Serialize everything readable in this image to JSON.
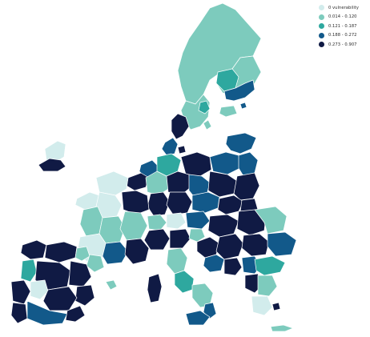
{
  "colors": {
    "background": "#ffffff",
    "border": "#ffffff",
    "classes": [
      "#d2ecec",
      "#7dcbbd",
      "#2ea89f",
      "#12598a",
      "#101a44"
    ]
  },
  "legend": {
    "items": [
      {
        "label": "0 vulnerability",
        "color": "#d2ecec"
      },
      {
        "label": "0.014 - 0.120",
        "color": "#7dcbbd"
      },
      {
        "label": "0.121 - 0.187",
        "color": "#2ea89f"
      },
      {
        "label": "0.188 - 0.272",
        "color": "#12598a"
      },
      {
        "label": "0.273 - 0.907",
        "color": "#101a44"
      }
    ]
  }
}
